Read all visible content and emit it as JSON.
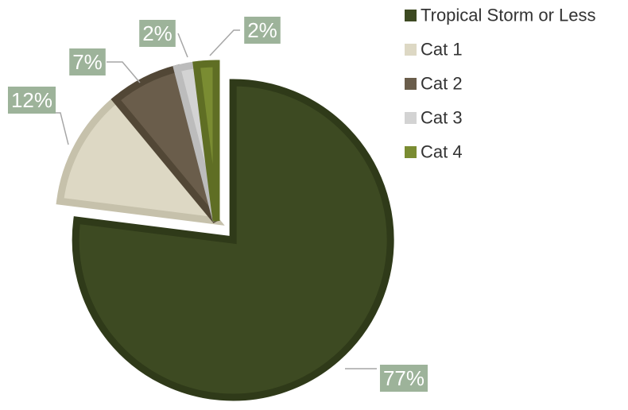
{
  "chart_data": {
    "type": "pie",
    "title": "",
    "categories": [
      "Tropical Storm or Less",
      "Cat 1",
      "Cat 2",
      "Cat 3",
      "Cat 4"
    ],
    "values": [
      77,
      12,
      7,
      2,
      2
    ],
    "data_labels": [
      "77%",
      "12%",
      "7%",
      "2%",
      "2%"
    ],
    "colors": [
      "#3d4a22",
      "#ddd8c4",
      "#6a5d4b",
      "#d3d3d3",
      "#7a8c32"
    ],
    "border_colors": [
      "#2f3a19",
      "#c6c1ab",
      "#524736",
      "#bcbcbc",
      "#5f6e24"
    ],
    "label_box_color": "#9db39a",
    "leader_color": "#a6a6a6",
    "exploded": [
      true,
      false,
      false,
      false,
      false
    ],
    "legend_position": "right"
  }
}
